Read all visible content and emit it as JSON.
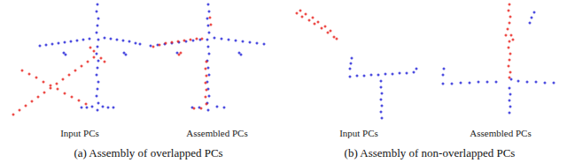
{
  "chart_data": [
    {
      "type": "scatter",
      "title": "Input PCs",
      "xlim": [
        0,
        150
      ],
      "ylim": [
        0,
        140
      ],
      "xticks": [
        0,
        150
      ],
      "yticks": [
        0,
        140
      ],
      "tick_labels": false,
      "grid": false,
      "series": [
        {
          "color": "#2020d8",
          "marker": "circle",
          "values": [
            [
              100,
              135
            ],
            [
              99,
              127
            ],
            [
              101,
              119
            ],
            [
              100,
              111
            ],
            [
              99,
              103
            ],
            [
              101,
              95
            ],
            [
              100,
              87
            ],
            [
              99,
              79
            ],
            [
              101,
              71
            ],
            [
              100,
              63
            ],
            [
              99,
              55
            ],
            [
              101,
              47
            ],
            [
              100,
              39
            ],
            [
              99,
              31
            ],
            [
              101,
              23
            ],
            [
              100,
              15
            ],
            [
              35,
              88
            ],
            [
              42,
              89
            ],
            [
              49,
              90
            ],
            [
              56,
              91
            ],
            [
              63,
              92
            ],
            [
              70,
              93
            ],
            [
              77,
              94
            ],
            [
              84,
              95
            ],
            [
              91,
              96
            ],
            [
              108,
              97
            ],
            [
              115,
              96
            ],
            [
              122,
              95
            ],
            [
              129,
              94
            ],
            [
              136,
              93
            ],
            [
              143,
              91
            ],
            [
              148,
              90
            ],
            [
              62,
              80
            ],
            [
              64,
              78
            ],
            [
              130,
              80
            ],
            [
              132,
              78
            ],
            [
              82,
              18
            ],
            [
              88,
              18
            ],
            [
              94,
              19
            ],
            [
              106,
              19
            ],
            [
              112,
              18
            ],
            [
              118,
              18
            ]
          ]
        },
        {
          "color": "#e8201c",
          "marker": "circle",
          "values": [
            [
              5,
              10
            ],
            [
              12,
              15
            ],
            [
              19,
              20
            ],
            [
              26,
              25
            ],
            [
              33,
              30
            ],
            [
              40,
              35
            ],
            [
              47,
              40
            ],
            [
              54,
              45
            ],
            [
              61,
              50
            ],
            [
              68,
              55
            ],
            [
              75,
              60
            ],
            [
              82,
              65
            ],
            [
              89,
              70
            ],
            [
              96,
              75
            ],
            [
              15,
              60
            ],
            [
              23,
              56
            ],
            [
              31,
              52
            ],
            [
              39,
              47
            ],
            [
              47,
              43
            ],
            [
              55,
              39
            ],
            [
              63,
              34
            ],
            [
              71,
              30
            ],
            [
              79,
              26
            ],
            [
              87,
              22
            ],
            [
              92,
              86
            ],
            [
              96,
              82
            ],
            [
              104,
              74
            ],
            [
              108,
              70
            ]
          ]
        }
      ]
    },
    {
      "type": "scatter",
      "title": "Assembled PCs",
      "xlim": [
        0,
        150
      ],
      "ylim": [
        0,
        140
      ],
      "xticks": [
        0,
        150
      ],
      "yticks": [
        0,
        140
      ],
      "tick_labels": false,
      "grid": false,
      "series": [
        {
          "color": "#2020d8",
          "marker": "circle",
          "values": [
            [
              70,
              135
            ],
            [
              71,
              127
            ],
            [
              69,
              119
            ],
            [
              70,
              111
            ],
            [
              71,
              103
            ],
            [
              69,
              95
            ],
            [
              70,
              87
            ],
            [
              71,
              79
            ],
            [
              69,
              71
            ],
            [
              70,
              63
            ],
            [
              71,
              55
            ],
            [
              69,
              47
            ],
            [
              70,
              39
            ],
            [
              71,
              31
            ],
            [
              69,
              23
            ],
            [
              70,
              15
            ],
            [
              5,
              88
            ],
            [
              13,
              89
            ],
            [
              21,
              90
            ],
            [
              29,
              91
            ],
            [
              37,
              92
            ],
            [
              45,
              93
            ],
            [
              53,
              94
            ],
            [
              61,
              95
            ],
            [
              77,
              97
            ],
            [
              85,
              96
            ],
            [
              93,
              95
            ],
            [
              101,
              94
            ],
            [
              109,
              93
            ],
            [
              117,
              92
            ],
            [
              125,
              91
            ],
            [
              133,
              90
            ],
            [
              35,
              80
            ],
            [
              105,
              80
            ],
            [
              107,
              78
            ],
            [
              52,
              18
            ],
            [
              60,
              18
            ],
            [
              80,
              19
            ],
            [
              88,
              18
            ]
          ]
        },
        {
          "color": "#e8201c",
          "marker": "circle",
          "values": [
            [
              8,
              87
            ],
            [
              15,
              89
            ],
            [
              22,
              91
            ],
            [
              29,
              92
            ],
            [
              36,
              93
            ],
            [
              43,
              94
            ],
            [
              50,
              95
            ],
            [
              57,
              96
            ],
            [
              63,
              96
            ],
            [
              37,
              78
            ],
            [
              39,
              80
            ],
            [
              68,
              70
            ],
            [
              67,
              62
            ],
            [
              68,
              54
            ],
            [
              67,
              46
            ],
            [
              68,
              38
            ],
            [
              67,
              30
            ],
            [
              68,
              22
            ],
            [
              54,
              17
            ],
            [
              62,
              17
            ],
            [
              72,
              120
            ],
            [
              73,
              112
            ]
          ]
        }
      ]
    },
    {
      "type": "scatter",
      "title": "Input PCs",
      "xlim": [
        0,
        150
      ],
      "ylim": [
        0,
        140
      ],
      "xticks": [
        0,
        150
      ],
      "yticks": [
        0,
        140
      ],
      "tick_labels": false,
      "grid": false,
      "series": [
        {
          "color": "#e8201c",
          "marker": "circle",
          "values": [
            [
              10,
              125
            ],
            [
              14,
              128
            ],
            [
              16,
              121
            ],
            [
              20,
              124
            ],
            [
              24,
              117
            ],
            [
              28,
              120
            ],
            [
              30,
              113
            ],
            [
              34,
              115
            ],
            [
              38,
              108
            ],
            [
              42,
              110
            ],
            [
              45,
              103
            ],
            [
              48,
              105
            ],
            [
              52,
              98
            ],
            [
              55,
              96
            ]
          ]
        },
        {
          "color": "#2020d8",
          "marker": "circle",
          "values": [
            [
              70,
              53
            ],
            [
              78,
              54
            ],
            [
              86,
              54
            ],
            [
              94,
              55
            ],
            [
              102,
              55
            ],
            [
              110,
              56
            ],
            [
              118,
              56
            ],
            [
              126,
              57
            ],
            [
              134,
              57
            ],
            [
              142,
              58
            ],
            [
              105,
              48
            ],
            [
              105,
              41
            ],
            [
              106,
              34
            ],
            [
              105,
              27
            ],
            [
              106,
              20
            ],
            [
              105,
              13
            ],
            [
              106,
              6
            ],
            [
              70,
              62
            ],
            [
              71,
              68
            ],
            [
              72,
              74
            ],
            [
              145,
              62
            ]
          ]
        }
      ]
    },
    {
      "type": "scatter",
      "title": "Assembled PCs",
      "xlim": [
        0,
        150
      ],
      "ylim": [
        0,
        140
      ],
      "xticks": [
        0,
        150
      ],
      "yticks": [
        0,
        140
      ],
      "tick_labels": false,
      "grid": false,
      "series": [
        {
          "color": "#e8201c",
          "marker": "circle",
          "values": [
            [
              90,
              135
            ],
            [
              89,
              128
            ],
            [
              91,
              121
            ],
            [
              90,
              114
            ],
            [
              88,
              107
            ],
            [
              92,
              100
            ],
            [
              86,
              100
            ],
            [
              90,
              93
            ],
            [
              94,
              95
            ],
            [
              89,
              86
            ],
            [
              91,
              79
            ],
            [
              90,
              72
            ],
            [
              89,
              65
            ],
            [
              91,
              58
            ],
            [
              90,
              52
            ]
          ]
        },
        {
          "color": "#2020d8",
          "marker": "circle",
          "values": [
            [
              15,
              45
            ],
            [
              25,
              45
            ],
            [
              35,
              46
            ],
            [
              45,
              46
            ],
            [
              55,
              47
            ],
            [
              65,
              47
            ],
            [
              75,
              47
            ],
            [
              100,
              48
            ],
            [
              110,
              47
            ],
            [
              120,
              47
            ],
            [
              130,
              46
            ],
            [
              140,
              46
            ],
            [
              90,
              40
            ],
            [
              91,
              33
            ],
            [
              90,
              26
            ],
            [
              91,
              19
            ],
            [
              90,
              12
            ],
            [
              15,
              55
            ],
            [
              16,
              62
            ],
            [
              115,
              120
            ],
            [
              118,
              126
            ],
            [
              113,
              114
            ],
            [
              92,
              50
            ]
          ]
        }
      ]
    }
  ],
  "figure": {
    "captions": [
      "(a) Assembly of overlapped PCs",
      "(b) Assembly of non-overlapped PCs"
    ]
  }
}
